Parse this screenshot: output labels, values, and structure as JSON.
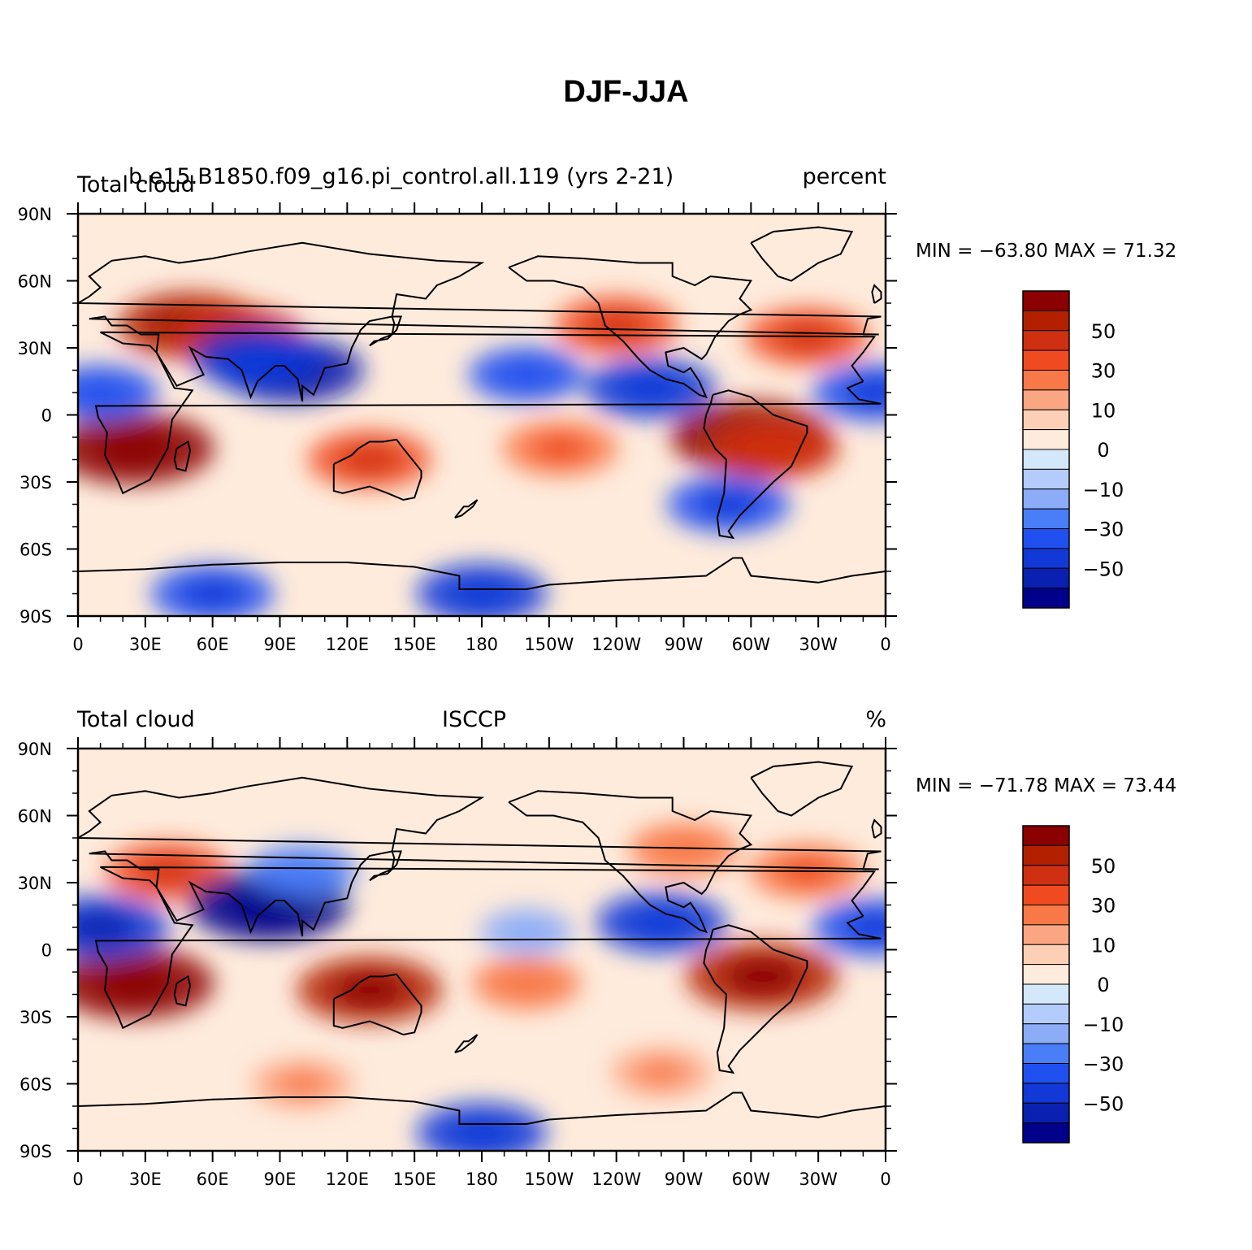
{
  "title": "DJF-JJA",
  "chart_data": [
    {
      "type": "heatmap",
      "left_label": "Total cloud",
      "center_label": "b.e15.B1850.f09_g16.pi_control.all.119 (yrs 2-21)",
      "right_label": "percent",
      "min_label": "MIN = −63.80",
      "max_label": "MAX =  71.32",
      "min": -63.8,
      "max": 71.32,
      "x_ticks": [
        "0",
        "30E",
        "60E",
        "90E",
        "120E",
        "150E",
        "180",
        "150W",
        "120W",
        "90W",
        "60W",
        "30W",
        "0"
      ],
      "y_ticks": [
        "90N",
        "60N",
        "30N",
        "0",
        "30S",
        "60S",
        "90S"
      ],
      "colorbar_labels": [
        "50",
        "30",
        "10",
        "0",
        "−10",
        "−30",
        "−50"
      ],
      "colors": [
        "#8b0000",
        "#b22000",
        "#d03012",
        "#f04a20",
        "#f87848",
        "#fba682",
        "#fdd0b6",
        "#feebdc",
        "#d4e8fc",
        "#b4ccfc",
        "#8cacf8",
        "#4a7ef8",
        "#2050f0",
        "#1238d8",
        "#0a20b0",
        "#00008a"
      ],
      "regions": [
        {
          "lon": 25,
          "lat": -15,
          "value": 65
        },
        {
          "lon": 50,
          "lat": 40,
          "value": 55
        },
        {
          "lon": 70,
          "lat": 35,
          "value": 50
        },
        {
          "lon": 300,
          "lat": -10,
          "value": 65
        },
        {
          "lon": 310,
          "lat": -15,
          "value": 45
        },
        {
          "lon": 130,
          "lat": -20,
          "value": 40
        },
        {
          "lon": 215,
          "lat": -15,
          "value": 35
        },
        {
          "lon": 240,
          "lat": 40,
          "value": 40
        },
        {
          "lon": 325,
          "lat": 35,
          "value": 40
        },
        {
          "lon": 95,
          "lat": 20,
          "value": -55
        },
        {
          "lon": 80,
          "lat": 25,
          "value": -45
        },
        {
          "lon": 200,
          "lat": 18,
          "value": -35
        },
        {
          "lon": 255,
          "lat": 12,
          "value": -45
        },
        {
          "lon": 355,
          "lat": 10,
          "value": -40
        },
        {
          "lon": 10,
          "lat": 10,
          "value": -35
        },
        {
          "lon": 290,
          "lat": -40,
          "value": -40
        },
        {
          "lon": 180,
          "lat": -80,
          "value": -45
        },
        {
          "lon": 60,
          "lat": -80,
          "value": -40
        }
      ]
    },
    {
      "type": "heatmap",
      "left_label": "Total cloud",
      "center_label": "ISCCP",
      "right_label": "%",
      "min_label": "MIN = −71.78",
      "max_label": "MAX =  73.44",
      "min": -71.78,
      "max": 73.44,
      "x_ticks": [
        "0",
        "30E",
        "60E",
        "90E",
        "120E",
        "150E",
        "180",
        "150W",
        "120W",
        "90W",
        "60W",
        "30W",
        "0"
      ],
      "y_ticks": [
        "90N",
        "60N",
        "30N",
        "0",
        "30S",
        "60S",
        "90S"
      ],
      "colorbar_labels": [
        "50",
        "30",
        "10",
        "0",
        "−10",
        "−30",
        "−50"
      ],
      "colors": [
        "#8b0000",
        "#b22000",
        "#d03012",
        "#f04a20",
        "#f87848",
        "#fba682",
        "#fdd0b6",
        "#feebdc",
        "#d4e8fc",
        "#b4ccfc",
        "#8cacf8",
        "#4a7ef8",
        "#2050f0",
        "#1238d8",
        "#0a20b0",
        "#00008a"
      ],
      "regions": [
        {
          "lon": 25,
          "lat": -15,
          "value": 65
        },
        {
          "lon": 130,
          "lat": -18,
          "value": 55
        },
        {
          "lon": 305,
          "lat": -12,
          "value": 60
        },
        {
          "lon": 40,
          "lat": 35,
          "value": 40
        },
        {
          "lon": 325,
          "lat": 35,
          "value": 35
        },
        {
          "lon": 270,
          "lat": 45,
          "value": 30
        },
        {
          "lon": 200,
          "lat": -15,
          "value": 30
        },
        {
          "lon": 85,
          "lat": 20,
          "value": -65
        },
        {
          "lon": 100,
          "lat": 35,
          "value": -30
        },
        {
          "lon": 10,
          "lat": 10,
          "value": -50
        },
        {
          "lon": 260,
          "lat": 12,
          "value": -45
        },
        {
          "lon": 355,
          "lat": 10,
          "value": -40
        },
        {
          "lon": 200,
          "lat": 8,
          "value": -20
        },
        {
          "lon": 180,
          "lat": -82,
          "value": -45
        },
        {
          "lon": 100,
          "lat": -60,
          "value": 25
        },
        {
          "lon": 260,
          "lat": -55,
          "value": 25
        }
      ]
    }
  ]
}
